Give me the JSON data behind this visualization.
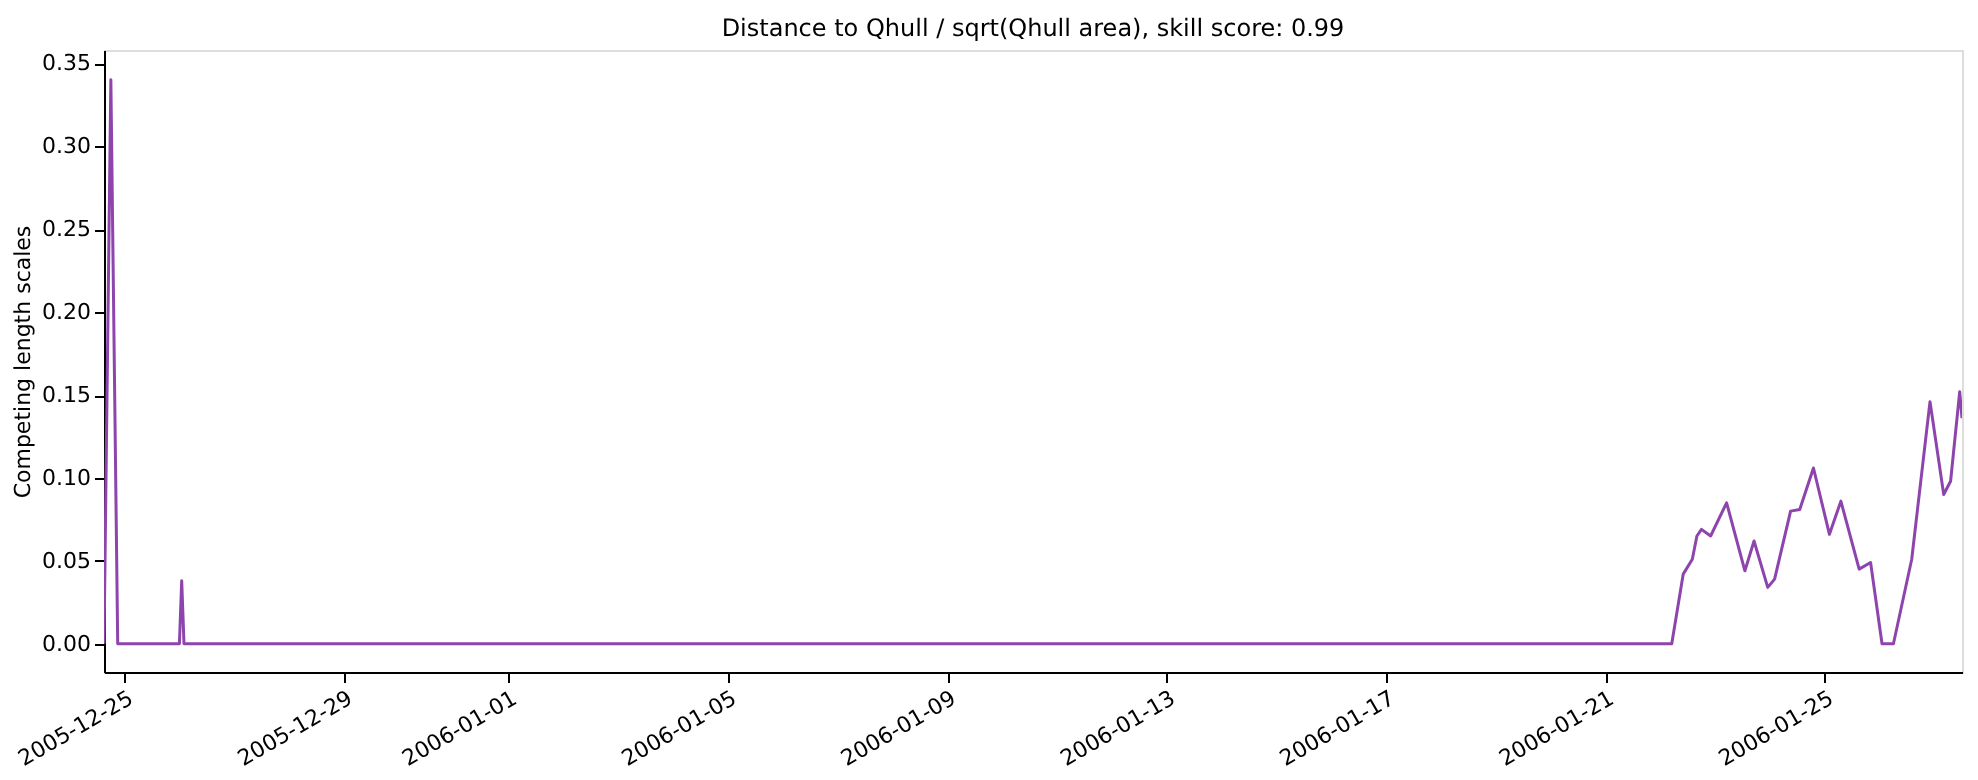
{
  "chart_data": {
    "type": "line",
    "title": "Distance to Qhull / sqrt(Qhull area), skill score: 0.99",
    "ylabel": "Competing length scales",
    "x": [
      "2005-12-24T15:00",
      "2005-12-24T18:00",
      "2005-12-24T21:00",
      "2005-12-26T00:00",
      "2005-12-26T01:00",
      "2005-12-26T02:00",
      "2006-01-22T05:00",
      "2006-01-22T10:00",
      "2006-01-22T14:00",
      "2006-01-22T16:00",
      "2006-01-22T18:00",
      "2006-01-22T22:00",
      "2006-01-23T05:00",
      "2006-01-23T13:00",
      "2006-01-23T17:00",
      "2006-01-23T23:00",
      "2006-01-24T02:00",
      "2006-01-24T09:00",
      "2006-01-24T13:00",
      "2006-01-24T19:00",
      "2006-01-25T02:00",
      "2006-01-25T07:00",
      "2006-01-25T15:00",
      "2006-01-25T20:00",
      "2006-01-26T01:00",
      "2006-01-26T06:00",
      "2006-01-26T14:00",
      "2006-01-26T22:00",
      "2006-01-27T04:00",
      "2006-01-27T07:00",
      "2006-01-27T11:00",
      "2006-01-27T12:00"
    ],
    "series": [
      {
        "color": "#8e44ad",
        "values": [
          0,
          0.34,
          0,
          0,
          0.038,
          0,
          0,
          0.042,
          0.051,
          0.065,
          0.069,
          0.065,
          0.085,
          0.044,
          0.062,
          0.034,
          0.039,
          0.08,
          0.081,
          0.106,
          0.066,
          0.086,
          0.045,
          0.049,
          0,
          0,
          0.051,
          0.146,
          0.09,
          0.098,
          0.152,
          0.136
        ]
      }
    ],
    "xlim": [
      "2005-12-24T15:00",
      "2006-01-27T12:00"
    ],
    "xticks": [
      "2005-12-25",
      "2005-12-29",
      "2006-01-01",
      "2006-01-05",
      "2006-01-09",
      "2006-01-13",
      "2006-01-17",
      "2006-01-21",
      "2006-01-25"
    ],
    "ylim": [
      -0.017,
      0.358
    ],
    "yticks": [
      {
        "value": 0,
        "label": "0.00"
      },
      0.05,
      {
        "value": 0.1,
        "label": "0.10"
      },
      0.15,
      {
        "value": 0.2,
        "label": "0.20"
      },
      0.25,
      {
        "value": 0.3,
        "label": "0.30"
      },
      0.35
    ],
    "grid": false,
    "marker": "none",
    "line_style": "solid"
  }
}
